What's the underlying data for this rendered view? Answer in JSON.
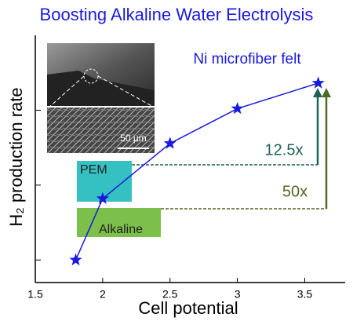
{
  "chart_data": {
    "type": "line",
    "title": "Boosting Alkaline Water Electrolysis",
    "x_label": "Cell potential",
    "y_label": "H₂ production rate",
    "x": [
      1.8,
      2.0,
      2.5,
      3.0,
      3.6
    ],
    "series": [
      {
        "name": "Ni microfiber felt",
        "color": "#1a1adf",
        "values": [
          1,
          6.6,
          36,
          105,
          230
        ]
      }
    ],
    "xlim": [
      1.5,
      3.8
    ],
    "xticks": [
      1.5,
      2.0,
      2.5,
      3.0,
      3.5
    ],
    "ylim": [
      0.5,
      1000
    ],
    "yticks": [
      1,
      10,
      100
    ],
    "log_y": true,
    "inset_scale": "50 µm",
    "boxes": [
      {
        "label": "PEM",
        "color": "#35c1c1"
      },
      {
        "label": "Alkaline",
        "color": "#7cbf4b"
      }
    ],
    "ratios": [
      {
        "label": "12.5x",
        "color": "#1f5f5c"
      },
      {
        "label": "50x",
        "color": "#4f6a22"
      }
    ]
  }
}
